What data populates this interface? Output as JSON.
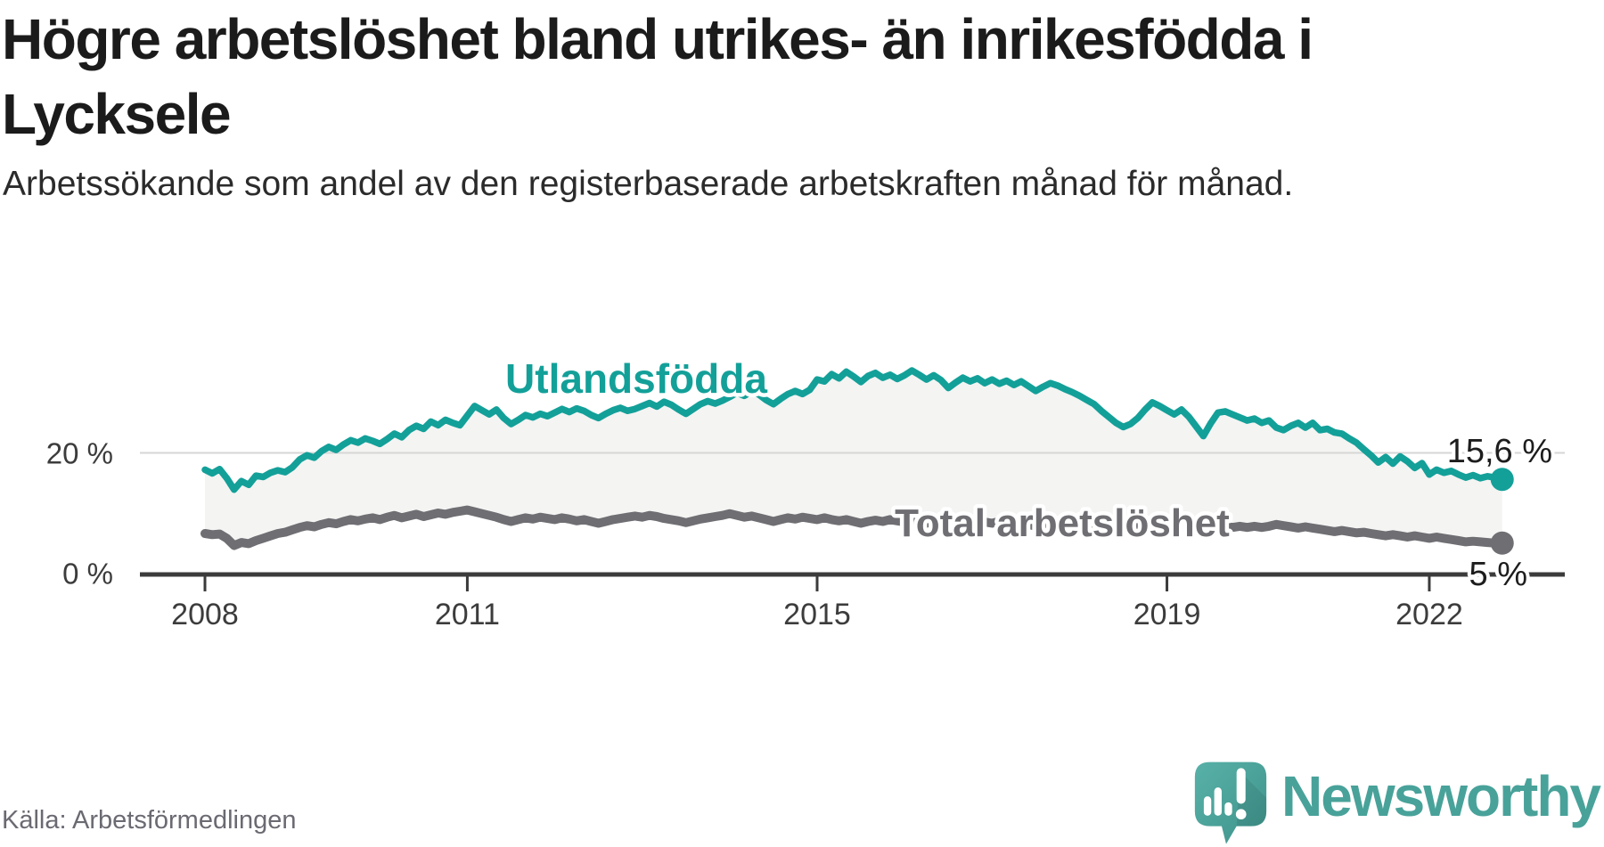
{
  "title": "Högre arbetslöshet bland utrikes- än inrikesfödda i Lycksele",
  "subtitle": "Arbetssökande som andel av den registerbaserade arbetskraften månad för månad.",
  "source": "Källa: Arbetsförmedlingen",
  "brand": {
    "name": "Newsworthy"
  },
  "colors": {
    "accent_teal": "#13a099",
    "line_gray": "#6e6e73",
    "fill_between": "#f4f4f3",
    "gridline": "#d6d6d6",
    "axis": "#3b3b3b",
    "tick_text": "#3c3c3c",
    "label_text": "#1d1d1d",
    "brand_teal": "#48a29a",
    "halo": "#ffffff"
  },
  "chart_data": {
    "type": "line",
    "title": "Högre arbetslöshet bland utrikes- än inrikesfödda i Lycksele",
    "unit": "%",
    "frequency": "monthly",
    "x_start": "2008-01",
    "x_end": "2022-11",
    "x_start_year": 2008,
    "ylim": [
      0,
      36
    ],
    "grid": "single-horizontal-at-20",
    "legend_position": "inline-labels",
    "yticks": [
      {
        "value": 0,
        "label": "0 %"
      },
      {
        "value": 20,
        "label": "20 %"
      }
    ],
    "xticks": [
      {
        "value": 2008,
        "label": "2008"
      },
      {
        "value": 2011,
        "label": "2011"
      },
      {
        "value": 2015,
        "label": "2015"
      },
      {
        "value": 2019,
        "label": "2019"
      },
      {
        "value": 2022,
        "label": "2022"
      }
    ],
    "series": [
      {
        "name": "Utlandsfödda",
        "color": "#13a099",
        "end_label": "15,6 %",
        "end_value": 15.6,
        "values": [
          17.2,
          16.6,
          17.3,
          15.8,
          13.9,
          15.3,
          14.7,
          16.2,
          16.0,
          16.7,
          17.1,
          16.8,
          17.6,
          18.9,
          19.6,
          19.2,
          20.3,
          21.0,
          20.5,
          21.4,
          22.1,
          21.7,
          22.4,
          22.0,
          21.5,
          22.3,
          23.2,
          22.6,
          23.8,
          24.5,
          24.0,
          25.2,
          24.6,
          25.5,
          25.0,
          24.6,
          26.2,
          27.8,
          27.1,
          26.4,
          27.2,
          25.8,
          24.8,
          25.5,
          26.3,
          25.9,
          26.5,
          26.1,
          26.7,
          27.3,
          26.8,
          27.4,
          27.0,
          26.3,
          25.8,
          26.5,
          27.1,
          27.5,
          27.0,
          27.3,
          27.8,
          28.3,
          27.7,
          28.5,
          28.0,
          27.2,
          26.5,
          27.3,
          28.1,
          28.6,
          28.2,
          28.7,
          29.3,
          30.0,
          29.5,
          30.2,
          29.7,
          28.8,
          28.1,
          29.0,
          29.8,
          30.3,
          29.8,
          30.5,
          32.2,
          31.9,
          33.1,
          32.4,
          33.5,
          32.7,
          31.8,
          32.8,
          33.3,
          32.5,
          33.0,
          32.3,
          32.9,
          33.7,
          33.0,
          32.2,
          32.9,
          32.1,
          30.8,
          31.7,
          32.5,
          31.9,
          32.4,
          31.6,
          32.2,
          31.5,
          32.0,
          31.3,
          31.9,
          31.1,
          30.3,
          31.0,
          31.6,
          31.2,
          30.6,
          30.1,
          29.5,
          28.8,
          28.1,
          27.0,
          26.0,
          25.0,
          24.3,
          24.8,
          25.8,
          27.2,
          28.4,
          27.8,
          27.1,
          26.4,
          27.2,
          26.0,
          24.4,
          22.8,
          24.9,
          26.7,
          26.9,
          26.4,
          25.9,
          25.4,
          25.7,
          25.0,
          25.4,
          24.2,
          23.8,
          24.5,
          25.0,
          24.2,
          25.0,
          23.8,
          24.0,
          23.4,
          23.2,
          22.4,
          21.7,
          20.6,
          19.6,
          18.4,
          19.3,
          18.2,
          19.4,
          18.6,
          17.5,
          18.3,
          16.4,
          17.2,
          16.7,
          17.0,
          16.4,
          15.9,
          16.3,
          15.8,
          16.1,
          15.9,
          15.6
        ]
      },
      {
        "name": "Total arbetslöshet",
        "color": "#6e6e73",
        "end_label": "5 %",
        "end_value": 5.0,
        "values": [
          6.6,
          6.4,
          6.5,
          5.8,
          4.6,
          5.1,
          4.9,
          5.4,
          5.8,
          6.2,
          6.6,
          6.8,
          7.2,
          7.6,
          7.9,
          7.7,
          8.1,
          8.4,
          8.2,
          8.6,
          8.9,
          8.7,
          9.0,
          9.2,
          8.9,
          9.3,
          9.6,
          9.2,
          9.5,
          9.8,
          9.4,
          9.7,
          10.0,
          9.8,
          10.1,
          10.3,
          10.5,
          10.2,
          9.9,
          9.6,
          9.3,
          8.9,
          8.6,
          8.9,
          9.2,
          9.0,
          9.3,
          9.1,
          8.9,
          9.2,
          9.0,
          8.7,
          8.9,
          8.6,
          8.3,
          8.6,
          8.9,
          9.1,
          9.3,
          9.5,
          9.3,
          9.6,
          9.4,
          9.1,
          8.9,
          8.7,
          8.4,
          8.7,
          9.0,
          9.2,
          9.4,
          9.6,
          9.9,
          9.6,
          9.3,
          9.5,
          9.2,
          8.9,
          8.6,
          8.9,
          9.2,
          9.0,
          9.3,
          9.1,
          8.9,
          9.2,
          8.9,
          8.7,
          8.9,
          8.6,
          8.3,
          8.6,
          8.8,
          8.6,
          8.9,
          8.7,
          8.5,
          8.8,
          8.6,
          8.3,
          8.6,
          8.3,
          8.0,
          8.3,
          8.6,
          8.4,
          8.7,
          8.5,
          8.3,
          8.6,
          8.4,
          8.1,
          8.4,
          8.1,
          7.8,
          8.1,
          8.4,
          8.6,
          8.4,
          8.2,
          8.0,
          8.3,
          8.1,
          7.8,
          7.6,
          7.4,
          7.1,
          7.4,
          7.7,
          7.9,
          7.7,
          7.5,
          7.7,
          7.9,
          7.7,
          7.5,
          7.7,
          7.5,
          7.2,
          7.5,
          7.8,
          7.6,
          7.8,
          7.6,
          7.8,
          7.6,
          7.8,
          8.1,
          7.9,
          7.7,
          7.5,
          7.7,
          7.5,
          7.3,
          7.1,
          6.9,
          7.1,
          6.9,
          6.7,
          6.8,
          6.6,
          6.4,
          6.2,
          6.4,
          6.2,
          6.0,
          6.2,
          6.0,
          5.8,
          6.0,
          5.8,
          5.6,
          5.4,
          5.2,
          5.3,
          5.2,
          5.1,
          5.0,
          5.0
        ]
      }
    ]
  }
}
